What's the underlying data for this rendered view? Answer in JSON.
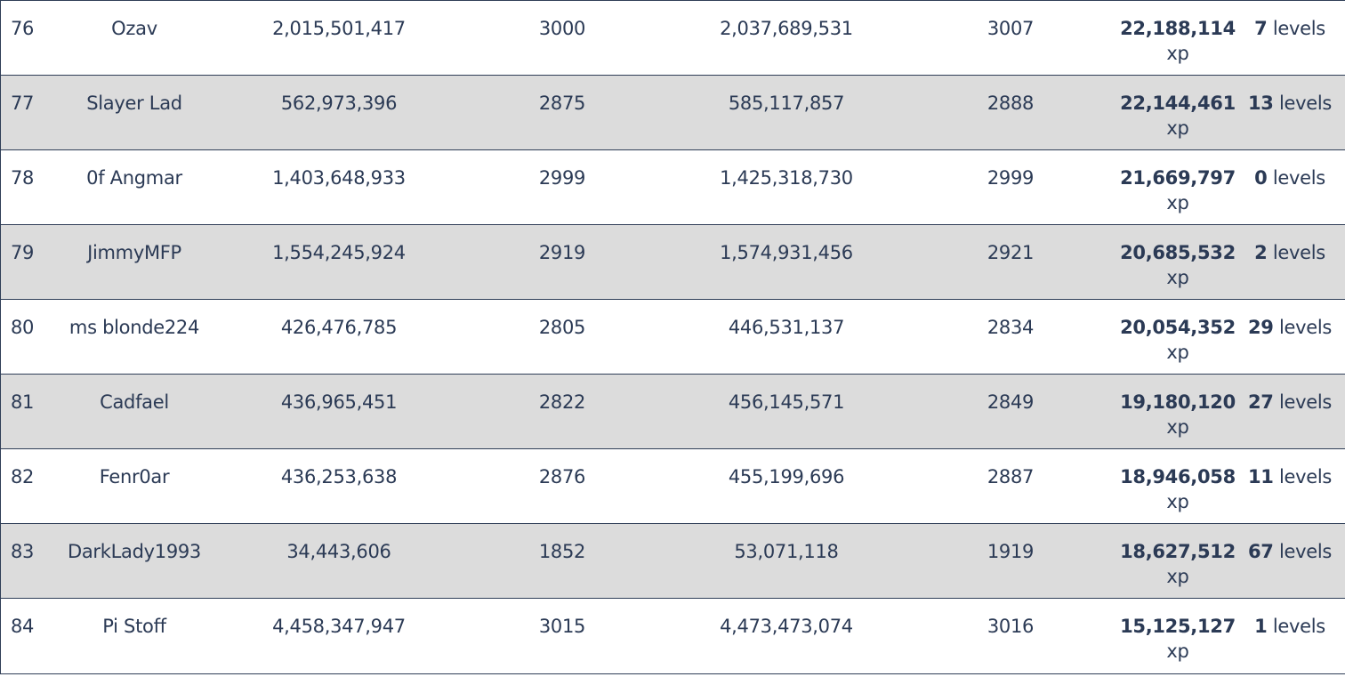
{
  "rows": [
    {
      "rank": "76",
      "name": "Ozav",
      "xp_start": "2,015,501,417",
      "level_start": "3000",
      "xp_end": "2,037,689,531",
      "level_end": "3007",
      "xp_gain": "22,188,114",
      "xp_unit": "xp",
      "levels_gained": "7",
      "levels_unit": "levels"
    },
    {
      "rank": "77",
      "name": "Slayer Lad",
      "xp_start": "562,973,396",
      "level_start": "2875",
      "xp_end": "585,117,857",
      "level_end": "2888",
      "xp_gain": "22,144,461",
      "xp_unit": "xp",
      "levels_gained": "13",
      "levels_unit": "levels"
    },
    {
      "rank": "78",
      "name": "0f Angmar",
      "xp_start": "1,403,648,933",
      "level_start": "2999",
      "xp_end": "1,425,318,730",
      "level_end": "2999",
      "xp_gain": "21,669,797",
      "xp_unit": "xp",
      "levels_gained": "0",
      "levels_unit": "levels"
    },
    {
      "rank": "79",
      "name": "JimmyMFP",
      "xp_start": "1,554,245,924",
      "level_start": "2919",
      "xp_end": "1,574,931,456",
      "level_end": "2921",
      "xp_gain": "20,685,532",
      "xp_unit": "xp",
      "levels_gained": "2",
      "levels_unit": "levels"
    },
    {
      "rank": "80",
      "name": "ms blonde224",
      "xp_start": "426,476,785",
      "level_start": "2805",
      "xp_end": "446,531,137",
      "level_end": "2834",
      "xp_gain": "20,054,352",
      "xp_unit": "xp",
      "levels_gained": "29",
      "levels_unit": "levels"
    },
    {
      "rank": "81",
      "name": "Cadfael",
      "xp_start": "436,965,451",
      "level_start": "2822",
      "xp_end": "456,145,571",
      "level_end": "2849",
      "xp_gain": "19,180,120",
      "xp_unit": "xp",
      "levels_gained": "27",
      "levels_unit": "levels"
    },
    {
      "rank": "82",
      "name": "Fenr0ar",
      "xp_start": "436,253,638",
      "level_start": "2876",
      "xp_end": "455,199,696",
      "level_end": "2887",
      "xp_gain": "18,946,058",
      "xp_unit": "xp",
      "levels_gained": "11",
      "levels_unit": "levels"
    },
    {
      "rank": "83",
      "name": "DarkLady1993",
      "xp_start": "34,443,606",
      "level_start": "1852",
      "xp_end": "53,071,118",
      "level_end": "1919",
      "xp_gain": "18,627,512",
      "xp_unit": "xp",
      "levels_gained": "67",
      "levels_unit": "levels"
    },
    {
      "rank": "84",
      "name": "Pi Stoff",
      "xp_start": "4,458,347,947",
      "level_start": "3015",
      "xp_end": "4,473,473,074",
      "level_end": "3016",
      "xp_gain": "15,125,127",
      "xp_unit": "xp",
      "levels_gained": "1",
      "levels_unit": "levels"
    }
  ],
  "colors": {
    "text": "#2b3a55",
    "row_alt_bg": "#dcdcdc",
    "row_bg": "#ffffff",
    "border": "#2f3e57"
  }
}
